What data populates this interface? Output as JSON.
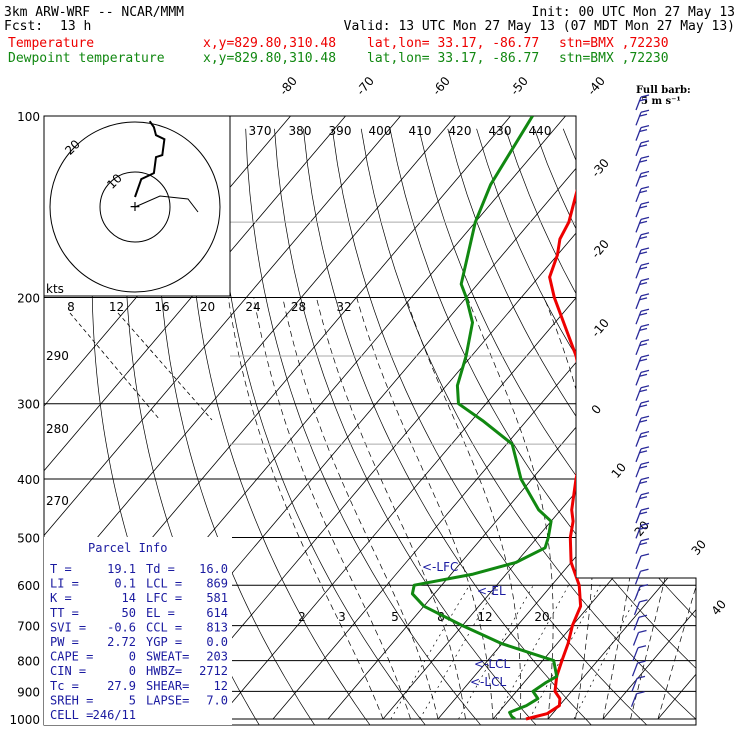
{
  "header": {
    "title": "3km ARW-WRF -- NCAR/MMM",
    "init": "Init: 00 UTC Mon 27 May 13",
    "fcst_label": "Fcst:",
    "fcst_value": "13 h",
    "valid": "Valid: 13 UTC Mon 27 May 13 (07 MDT Mon 27 May 13)",
    "temp_line": {
      "label": "Temperature",
      "xy": "x,y=829.80,310.48",
      "latlon": "lat,lon= 33.17, -86.77",
      "stn": "stn=BMX ,72230"
    },
    "dewp_line": {
      "label": "Dewpoint temperature",
      "xy": "x,y=829.80,310.48",
      "latlon": "lat,lon= 33.17, -86.77",
      "stn": "stn=BMX ,72230"
    }
  },
  "colors": {
    "temperature": "#ee0000",
    "dewpoint": "#118811",
    "parcel_text": "#1a1aa0",
    "barb": "#2a2a9a",
    "grid": "#000000"
  },
  "chart_data": [
    {
      "type": "line",
      "y_scale": "log",
      "ylim": [
        1000,
        100
      ],
      "pressure_ticks": [
        100,
        200,
        300,
        400,
        500,
        600,
        700,
        800,
        900,
        1000
      ],
      "isotherm_labels": [
        -80,
        -70,
        -60,
        -50,
        -40,
        -30,
        -20,
        -10,
        0,
        10,
        20,
        30,
        40
      ],
      "theta_labels": [
        370,
        380,
        390,
        400,
        410,
        420,
        430,
        440
      ],
      "theta_labels_left": [
        290,
        280,
        270
      ],
      "mixing_ratio_labels": [
        "2",
        "3",
        "5",
        "8",
        "12",
        "20"
      ],
      "series": [
        {
          "name": "Temperature",
          "points": [
            [
              1000,
              16
            ],
            [
              980,
              19
            ],
            [
              950,
              20
            ],
            [
              925,
              19
            ],
            [
              900,
              17
            ],
            [
              850,
              15
            ],
            [
              800,
              13.5
            ],
            [
              750,
              12
            ],
            [
              700,
              10
            ],
            [
              650,
              8.5
            ],
            [
              600,
              5
            ],
            [
              550,
              0
            ],
            [
              500,
              -4
            ],
            [
              470,
              -6
            ],
            [
              450,
              -8
            ],
            [
              400,
              -12
            ],
            [
              350,
              -16
            ],
            [
              300,
              -22
            ],
            [
              250,
              -31
            ],
            [
              200,
              -44
            ],
            [
              185,
              -48
            ],
            [
              170,
              -50
            ],
            [
              160,
              -52
            ],
            [
              150,
              -53
            ],
            [
              130,
              -57
            ],
            [
              120,
              -60
            ],
            [
              110,
              -63
            ],
            [
              100,
              -66
            ]
          ]
        },
        {
          "name": "Dewpoint temperature",
          "points": [
            [
              1000,
              14
            ],
            [
              990,
              13
            ],
            [
              975,
              12
            ],
            [
              950,
              14
            ],
            [
              925,
              15
            ],
            [
              900,
              13
            ],
            [
              870,
              14
            ],
            [
              850,
              15
            ],
            [
              800,
              12
            ],
            [
              750,
              0
            ],
            [
              700,
              -10
            ],
            [
              650,
              -20
            ],
            [
              620,
              -24
            ],
            [
              600,
              -25
            ],
            [
              575,
              -16
            ],
            [
              550,
              -10
            ],
            [
              520,
              -7
            ],
            [
              500,
              -8
            ],
            [
              470,
              -10
            ],
            [
              450,
              -14
            ],
            [
              400,
              -22
            ],
            [
              350,
              -29
            ],
            [
              320,
              -38
            ],
            [
              300,
              -45
            ],
            [
              280,
              -48
            ],
            [
              250,
              -51
            ],
            [
              220,
              -55
            ],
            [
              200,
              -60
            ],
            [
              190,
              -63
            ],
            [
              150,
              -70
            ],
            [
              130,
              -73
            ],
            [
              100,
              -76
            ]
          ]
        }
      ],
      "level_labels": [
        "<-LFC",
        "<-EL",
        "<-LCL",
        "<-LCL"
      ],
      "wind_barbs": {
        "label": "Full barb:",
        "unit": "5 m s⁻¹"
      }
    },
    {
      "type": "scatter",
      "role": "hodograph",
      "label": "kts",
      "speed_ticks": [
        "8",
        "12",
        "16",
        "20",
        "24",
        "28",
        "32"
      ],
      "ring_labels": [
        "20",
        "10"
      ],
      "points": [
        [
          0,
          5
        ],
        [
          3,
          14
        ],
        [
          9,
          17
        ],
        [
          10,
          25
        ],
        [
          13,
          26
        ],
        [
          14,
          34
        ],
        [
          10,
          36
        ],
        [
          9,
          40
        ],
        [
          7,
          43
        ]
      ]
    }
  ],
  "parcel_info": {
    "title": "Parcel Info",
    "rows": [
      {
        "l": "T  =",
        "lv": "19.1",
        "r": "Td =",
        "rv": "16.0"
      },
      {
        "l": "LI =",
        "lv": "0.1",
        "r": "LCL =",
        "rv": "869"
      },
      {
        "l": "K  =",
        "lv": "14",
        "r": "LFC =",
        "rv": "581"
      },
      {
        "l": "TT =",
        "lv": "50",
        "r": "EL  =",
        "rv": "614"
      },
      {
        "l": "SVI =",
        "lv": "-0.6",
        "r": "CCL =",
        "rv": "813"
      },
      {
        "l": "PW =",
        "lv": "2.72",
        "r": "YGP =",
        "rv": "0.0"
      },
      {
        "l": "CAPE =",
        "lv": "0",
        "r": "SWEAT=",
        "rv": "203"
      },
      {
        "l": "CIN =",
        "lv": "0",
        "r": "HWBZ=",
        "rv": "2712"
      },
      {
        "l": "Tc =",
        "lv": "27.9",
        "r": "SHEAR=",
        "rv": "12"
      },
      {
        "l": "SREH =",
        "lv": "5",
        "r": "LAPSE=",
        "rv": "7.0"
      },
      {
        "l": "CELL =",
        "lv": "246/11",
        "r": "",
        "rv": ""
      }
    ]
  }
}
